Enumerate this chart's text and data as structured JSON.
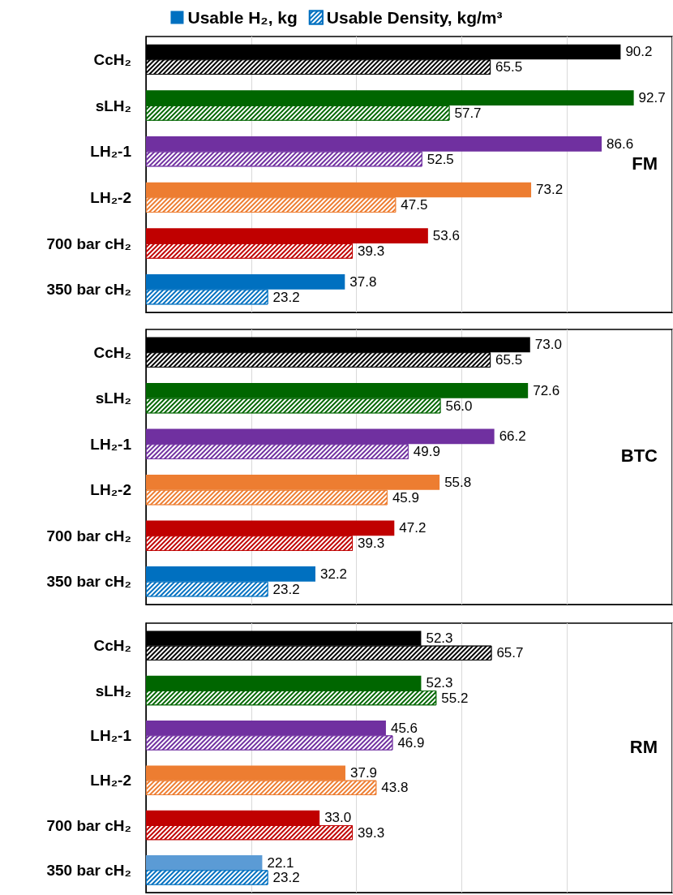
{
  "chart_data": [
    {
      "type": "bar",
      "orientation": "horizontal",
      "title": "FM",
      "categories": [
        "CcH₂",
        "sLH₂",
        "LH₂-1",
        "LH₂-2",
        "700 bar cH₂",
        "350 bar cH₂"
      ],
      "xlim": [
        0,
        100
      ],
      "xticks": [
        {
          "value": 0,
          "label": null
        },
        {
          "value": 20,
          "label": null
        },
        {
          "value": 40,
          "label": null
        },
        {
          "value": 60,
          "label": null
        },
        {
          "value": 80,
          "label": null
        },
        {
          "value": 100,
          "label": null
        }
      ],
      "tick_labels": "y",
      "grid": "x",
      "legend": "top",
      "series": [
        {
          "name": "Usable H₂, kg",
          "color": "#0070c0",
          "colors": [
            "#000000",
            "#006600",
            "#7030a0",
            "#ed7d31",
            "#c00000",
            "#0070c0"
          ],
          "values": [
            90.2,
            92.7,
            86.6,
            73.2,
            53.6,
            37.8
          ],
          "value_labels": [
            "90.2",
            "92.7",
            "86.6",
            "73.2",
            "53.6",
            "37.8"
          ]
        },
        {
          "name": "Usable Density, kg/m³",
          "color": "#0070c0",
          "colors": [
            "#000000",
            "#006600",
            "#7030a0",
            "#ed7d31",
            "#c00000",
            "#0070c0"
          ],
          "values": [
            65.5,
            57.7,
            52.5,
            47.5,
            39.3,
            23.2
          ],
          "value_labels": [
            "65.5",
            "57.7",
            "52.5",
            "47.5",
            "39.3",
            "23.2"
          ]
        }
      ]
    },
    {
      "type": "bar",
      "orientation": "horizontal",
      "title": "BTC",
      "categories": [
        "CcH₂",
        "sLH₂",
        "LH₂-1",
        "LH₂-2",
        "700 bar cH₂",
        "350 bar cH₂"
      ],
      "xlim": [
        0,
        100
      ],
      "xticks": [
        {
          "value": 0,
          "label": null
        },
        {
          "value": 20,
          "label": null
        },
        {
          "value": 40,
          "label": null
        },
        {
          "value": 60,
          "label": null
        },
        {
          "value": 80,
          "label": null
        },
        {
          "value": 100,
          "label": null
        }
      ],
      "tick_labels": "y",
      "grid": "x",
      "series": [
        {
          "color": "#5b9bd5",
          "colors": [
            "#000000",
            "#006600",
            "#7030a0",
            "#ed7d31",
            "#c00000",
            "#0070c0"
          ],
          "values": [
            73.0,
            72.6,
            66.2,
            55.8,
            47.2,
            32.2
          ],
          "value_labels": [
            "73.0",
            "72.6",
            "66.2",
            "55.8",
            "47.2",
            "32.2"
          ]
        },
        {
          "color": "#0070c0",
          "colors": [
            "#000000",
            "#006600",
            "#7030a0",
            "#ed7d31",
            "#c00000",
            "#0070c0"
          ],
          "values": [
            65.5,
            56.0,
            49.9,
            45.9,
            39.3,
            23.2
          ],
          "value_labels": [
            "65.5",
            "56.0",
            "49.9",
            "45.9",
            "39.3",
            "23.2"
          ]
        }
      ]
    },
    {
      "type": "bar",
      "orientation": "horizontal",
      "title": "RM",
      "categories": [
        "CcH₂",
        "sLH₂",
        "LH₂-1",
        "LH₂-2",
        "700 bar cH₂",
        "350 bar cH₂"
      ],
      "xlim": [
        0,
        100
      ],
      "xticks": [
        {
          "value": 0,
          "label": null
        },
        {
          "value": 20,
          "label": null
        },
        {
          "value": 40,
          "label": null
        },
        {
          "value": 60,
          "label": null
        },
        {
          "value": 80,
          "label": null
        },
        {
          "value": 100,
          "label": null
        }
      ],
      "tick_labels": "y",
      "grid": "x",
      "series": [
        {
          "color": "#5b9bd5",
          "colors": [
            "#000000",
            "#006600",
            "#7030a0",
            "#ed7d31",
            "#c00000",
            "#5b9bd5"
          ],
          "values": [
            52.3,
            52.3,
            45.6,
            37.9,
            33.0,
            22.1
          ],
          "value_labels": [
            "52.3",
            "52.3",
            "45.6",
            "37.9",
            "33.0",
            "22.1"
          ]
        },
        {
          "color": "#0070c0",
          "colors": [
            "#000000",
            "#006600",
            "#7030a0",
            "#ed7d31",
            "#c00000",
            "#0070c0"
          ],
          "values": [
            65.7,
            55.2,
            46.9,
            43.8,
            39.3,
            23.2
          ],
          "value_labels": [
            "65.7",
            "55.2",
            "46.9",
            "43.8",
            "39.3",
            "23.2"
          ]
        }
      ]
    }
  ]
}
